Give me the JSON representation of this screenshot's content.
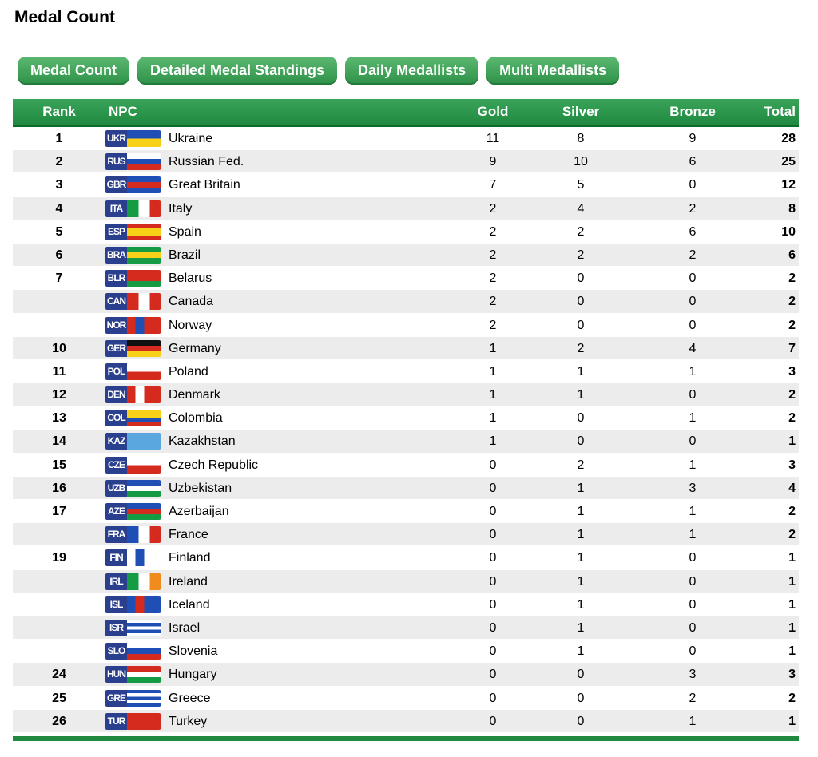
{
  "header": {
    "title": "Medal Count"
  },
  "tabs": [
    "Medal Count",
    "Detailed Medal Standings",
    "Daily Medallists",
    "Multi Medallists"
  ],
  "table": {
    "columns": [
      "Rank",
      "NPC",
      "Gold",
      "Silver",
      "Bronze",
      "Total"
    ],
    "rows": [
      {
        "rank": 1,
        "code": "UKR",
        "npc": "Ukraine",
        "gold": 11,
        "silver": 8,
        "bronze": 9,
        "total": 28
      },
      {
        "rank": 2,
        "code": "RUS",
        "npc": "Russian Fed.",
        "gold": 9,
        "silver": 10,
        "bronze": 6,
        "total": 25
      },
      {
        "rank": 3,
        "code": "GBR",
        "npc": "Great Britain",
        "gold": 7,
        "silver": 5,
        "bronze": 0,
        "total": 12
      },
      {
        "rank": 4,
        "code": "ITA",
        "npc": "Italy",
        "gold": 2,
        "silver": 4,
        "bronze": 2,
        "total": 8
      },
      {
        "rank": 5,
        "code": "ESP",
        "npc": "Spain",
        "gold": 2,
        "silver": 2,
        "bronze": 6,
        "total": 10
      },
      {
        "rank": 6,
        "code": "BRA",
        "npc": "Brazil",
        "gold": 2,
        "silver": 2,
        "bronze": 2,
        "total": 6
      },
      {
        "rank": 7,
        "code": "BLR",
        "npc": "Belarus",
        "gold": 2,
        "silver": 0,
        "bronze": 0,
        "total": 2
      },
      {
        "rank": null,
        "code": "CAN",
        "npc": "Canada",
        "gold": 2,
        "silver": 0,
        "bronze": 0,
        "total": 2
      },
      {
        "rank": null,
        "code": "NOR",
        "npc": "Norway",
        "gold": 2,
        "silver": 0,
        "bronze": 0,
        "total": 2
      },
      {
        "rank": 10,
        "code": "GER",
        "npc": "Germany",
        "gold": 1,
        "silver": 2,
        "bronze": 4,
        "total": 7
      },
      {
        "rank": 11,
        "code": "POL",
        "npc": "Poland",
        "gold": 1,
        "silver": 1,
        "bronze": 1,
        "total": 3
      },
      {
        "rank": 12,
        "code": "DEN",
        "npc": "Denmark",
        "gold": 1,
        "silver": 1,
        "bronze": 0,
        "total": 2
      },
      {
        "rank": 13,
        "code": "COL",
        "npc": "Colombia",
        "gold": 1,
        "silver": 0,
        "bronze": 1,
        "total": 2
      },
      {
        "rank": 14,
        "code": "KAZ",
        "npc": "Kazakhstan",
        "gold": 1,
        "silver": 0,
        "bronze": 0,
        "total": 1
      },
      {
        "rank": 15,
        "code": "CZE",
        "npc": "Czech Republic",
        "gold": 0,
        "silver": 2,
        "bronze": 1,
        "total": 3
      },
      {
        "rank": 16,
        "code": "UZB",
        "npc": "Uzbekistan",
        "gold": 0,
        "silver": 1,
        "bronze": 3,
        "total": 4
      },
      {
        "rank": 17,
        "code": "AZE",
        "npc": "Azerbaijan",
        "gold": 0,
        "silver": 1,
        "bronze": 1,
        "total": 2
      },
      {
        "rank": null,
        "code": "FRA",
        "npc": "France",
        "gold": 0,
        "silver": 1,
        "bronze": 1,
        "total": 2
      },
      {
        "rank": 19,
        "code": "FIN",
        "npc": "Finland",
        "gold": 0,
        "silver": 1,
        "bronze": 0,
        "total": 1
      },
      {
        "rank": null,
        "code": "IRL",
        "npc": "Ireland",
        "gold": 0,
        "silver": 1,
        "bronze": 0,
        "total": 1
      },
      {
        "rank": null,
        "code": "ISL",
        "npc": "Iceland",
        "gold": 0,
        "silver": 1,
        "bronze": 0,
        "total": 1
      },
      {
        "rank": null,
        "code": "ISR",
        "npc": "Israel",
        "gold": 0,
        "silver": 1,
        "bronze": 0,
        "total": 1
      },
      {
        "rank": null,
        "code": "SLO",
        "npc": "Slovenia",
        "gold": 0,
        "silver": 1,
        "bronze": 0,
        "total": 1
      },
      {
        "rank": 24,
        "code": "HUN",
        "npc": "Hungary",
        "gold": 0,
        "silver": 0,
        "bronze": 3,
        "total": 3
      },
      {
        "rank": 25,
        "code": "GRE",
        "npc": "Greece",
        "gold": 0,
        "silver": 0,
        "bronze": 2,
        "total": 2
      },
      {
        "rank": 26,
        "code": "TUR",
        "npc": "Turkey",
        "gold": 0,
        "silver": 0,
        "bronze": 1,
        "total": 1
      }
    ]
  }
}
